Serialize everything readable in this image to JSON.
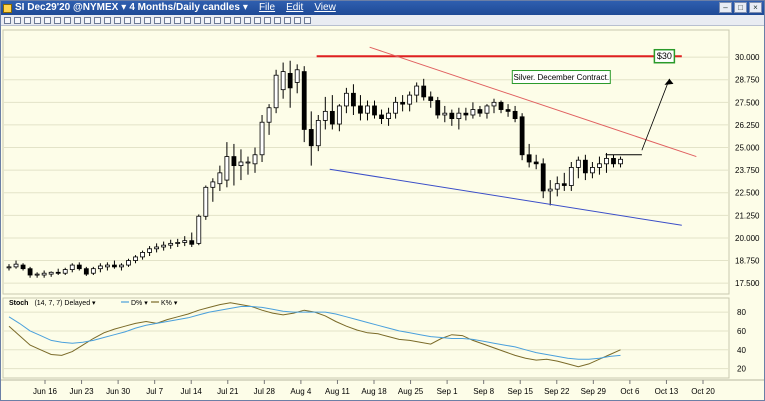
{
  "window": {
    "title": "SI Dec29'20 @NYMEX",
    "period": "4 Months/Daily candles",
    "menus": [
      "File",
      "Edit",
      "View"
    ],
    "controls": [
      "minimize-icon",
      "maximize-icon",
      "close-icon"
    ],
    "toolbar_icons": [
      "pointer-icon",
      "crosshair-icon",
      "line-tool-icon",
      "channel-tool-icon",
      "fib-tool-icon",
      "text-tool-icon",
      "ellipse-tool-icon",
      "rect-tool-icon",
      "arrow-tool-icon",
      "zoom-in-icon",
      "zoom-out-icon",
      "measure-icon",
      "erase-icon",
      "draw-icon",
      "color-icon",
      "palette-icon",
      "lock-icon",
      "grid-icon",
      "settings-icon",
      "gear-icon",
      "tag-icon",
      "star-icon",
      "flag-icon",
      "target-icon",
      "bell-icon",
      "link-icon",
      "copy-icon",
      "paste-icon",
      "save-icon",
      "print-icon",
      "help-icon"
    ]
  },
  "colors": {
    "background": "#fdfde8",
    "candle": "#000000",
    "resistance_line": "#e02020",
    "upper_trend": "#e06060",
    "lower_trend": "#3b4ec8",
    "k_line": "#7a6a28",
    "d_line": "#4aa0dc",
    "annotation_border": "#2a9a2a"
  },
  "chart_data": [
    {
      "type": "candlestick",
      "ylim": [
        16.9,
        31.5
      ],
      "y_ticks": [
        "30.000",
        "28.750",
        "27.500",
        "26.250",
        "25.000",
        "23.750",
        "22.500",
        "21.250",
        "20.000",
        "18.750",
        "17.500"
      ],
      "x_ticks": [
        "Jun 16",
        "Jun 23",
        "Jun 30",
        "Jul 7",
        "Jul 14",
        "Jul 21",
        "Jul 28",
        "Aug 4",
        "Aug 11",
        "Aug 18",
        "Aug 25",
        "Sep 1",
        "Sep 8",
        "Sep 15",
        "Sep 22",
        "Sep 29",
        "Oct 6",
        "Oct 13",
        "Oct 20"
      ],
      "candles": [
        {
          "o": 18.35,
          "h": 18.55,
          "l": 18.2,
          "c": 18.4
        },
        {
          "o": 18.4,
          "h": 18.75,
          "l": 18.3,
          "c": 18.55
        },
        {
          "o": 18.5,
          "h": 18.6,
          "l": 18.2,
          "c": 18.3
        },
        {
          "o": 18.3,
          "h": 18.4,
          "l": 17.8,
          "c": 17.95
        },
        {
          "o": 17.95,
          "h": 18.1,
          "l": 17.8,
          "c": 18.0
        },
        {
          "o": 17.95,
          "h": 18.2,
          "l": 17.8,
          "c": 18.05
        },
        {
          "o": 18.0,
          "h": 18.15,
          "l": 17.85,
          "c": 18.1
        },
        {
          "o": 18.1,
          "h": 18.3,
          "l": 17.95,
          "c": 18.05
        },
        {
          "o": 18.05,
          "h": 18.35,
          "l": 17.95,
          "c": 18.25
        },
        {
          "o": 18.25,
          "h": 18.6,
          "l": 18.1,
          "c": 18.5
        },
        {
          "o": 18.5,
          "h": 18.65,
          "l": 18.2,
          "c": 18.3
        },
        {
          "o": 18.3,
          "h": 18.4,
          "l": 17.9,
          "c": 18.0
        },
        {
          "o": 18.05,
          "h": 18.4,
          "l": 17.95,
          "c": 18.3
        },
        {
          "o": 18.3,
          "h": 18.6,
          "l": 18.1,
          "c": 18.45
        },
        {
          "o": 18.4,
          "h": 18.65,
          "l": 18.2,
          "c": 18.5
        },
        {
          "o": 18.5,
          "h": 18.75,
          "l": 18.3,
          "c": 18.4
        },
        {
          "o": 18.4,
          "h": 18.6,
          "l": 18.2,
          "c": 18.5
        },
        {
          "o": 18.5,
          "h": 18.85,
          "l": 18.4,
          "c": 18.75
        },
        {
          "o": 18.75,
          "h": 19.05,
          "l": 18.6,
          "c": 18.95
        },
        {
          "o": 18.95,
          "h": 19.3,
          "l": 18.8,
          "c": 19.2
        },
        {
          "o": 19.2,
          "h": 19.55,
          "l": 19.0,
          "c": 19.4
        },
        {
          "o": 19.4,
          "h": 19.7,
          "l": 19.2,
          "c": 19.5
        },
        {
          "o": 19.5,
          "h": 19.8,
          "l": 19.3,
          "c": 19.6
        },
        {
          "o": 19.6,
          "h": 19.9,
          "l": 19.4,
          "c": 19.7
        },
        {
          "o": 19.7,
          "h": 19.95,
          "l": 19.5,
          "c": 19.75
        },
        {
          "o": 19.75,
          "h": 20.1,
          "l": 19.55,
          "c": 19.85
        },
        {
          "o": 19.85,
          "h": 20.3,
          "l": 19.5,
          "c": 19.65
        },
        {
          "o": 19.7,
          "h": 21.3,
          "l": 19.6,
          "c": 21.2
        },
        {
          "o": 21.2,
          "h": 22.9,
          "l": 21.0,
          "c": 22.8
        },
        {
          "o": 22.8,
          "h": 23.3,
          "l": 22.0,
          "c": 23.1
        },
        {
          "o": 23.0,
          "h": 24.0,
          "l": 22.6,
          "c": 23.6
        },
        {
          "o": 23.2,
          "h": 25.3,
          "l": 22.8,
          "c": 24.5
        },
        {
          "o": 24.5,
          "h": 25.2,
          "l": 22.9,
          "c": 24.0
        },
        {
          "o": 24.0,
          "h": 24.9,
          "l": 23.2,
          "c": 24.2
        },
        {
          "o": 24.2,
          "h": 24.5,
          "l": 23.5,
          "c": 24.2
        },
        {
          "o": 24.1,
          "h": 25.0,
          "l": 23.6,
          "c": 24.6
        },
        {
          "o": 24.6,
          "h": 26.8,
          "l": 24.2,
          "c": 26.4
        },
        {
          "o": 26.4,
          "h": 27.4,
          "l": 25.7,
          "c": 27.2
        },
        {
          "o": 27.2,
          "h": 29.3,
          "l": 26.9,
          "c": 29.0
        },
        {
          "o": 28.2,
          "h": 29.7,
          "l": 27.7,
          "c": 29.2
        },
        {
          "o": 29.1,
          "h": 29.8,
          "l": 27.2,
          "c": 28.3
        },
        {
          "o": 28.6,
          "h": 29.6,
          "l": 28.0,
          "c": 29.3
        },
        {
          "o": 29.2,
          "h": 29.5,
          "l": 25.3,
          "c": 26.0
        },
        {
          "o": 26.0,
          "h": 27.0,
          "l": 24.0,
          "c": 25.1
        },
        {
          "o": 25.1,
          "h": 26.8,
          "l": 24.8,
          "c": 26.5
        },
        {
          "o": 26.5,
          "h": 27.8,
          "l": 26.0,
          "c": 27.0
        },
        {
          "o": 27.0,
          "h": 27.9,
          "l": 26.0,
          "c": 26.3
        },
        {
          "o": 26.3,
          "h": 27.4,
          "l": 25.9,
          "c": 27.3
        },
        {
          "o": 27.3,
          "h": 28.3,
          "l": 26.9,
          "c": 28.0
        },
        {
          "o": 28.0,
          "h": 28.5,
          "l": 26.8,
          "c": 27.3
        },
        {
          "o": 27.3,
          "h": 27.9,
          "l": 26.5,
          "c": 26.9
        },
        {
          "o": 26.9,
          "h": 27.6,
          "l": 26.5,
          "c": 27.3
        },
        {
          "o": 27.3,
          "h": 27.6,
          "l": 26.6,
          "c": 26.8
        },
        {
          "o": 26.8,
          "h": 27.1,
          "l": 26.3,
          "c": 26.6
        },
        {
          "o": 26.6,
          "h": 27.2,
          "l": 26.2,
          "c": 26.9
        },
        {
          "o": 26.9,
          "h": 27.8,
          "l": 26.6,
          "c": 27.5
        },
        {
          "o": 27.5,
          "h": 27.9,
          "l": 27.0,
          "c": 27.4
        },
        {
          "o": 27.4,
          "h": 28.1,
          "l": 27.0,
          "c": 27.9
        },
        {
          "o": 27.9,
          "h": 28.6,
          "l": 27.5,
          "c": 28.4
        },
        {
          "o": 28.4,
          "h": 28.8,
          "l": 27.6,
          "c": 27.8
        },
        {
          "o": 27.8,
          "h": 28.1,
          "l": 27.2,
          "c": 27.6
        },
        {
          "o": 27.6,
          "h": 27.8,
          "l": 26.6,
          "c": 26.8
        },
        {
          "o": 26.8,
          "h": 27.3,
          "l": 26.4,
          "c": 26.9
        },
        {
          "o": 26.9,
          "h": 27.1,
          "l": 26.2,
          "c": 26.6
        },
        {
          "o": 26.6,
          "h": 27.2,
          "l": 26.0,
          "c": 26.9
        },
        {
          "o": 26.9,
          "h": 27.2,
          "l": 26.5,
          "c": 26.8
        },
        {
          "o": 26.8,
          "h": 27.5,
          "l": 26.6,
          "c": 27.1
        },
        {
          "o": 27.1,
          "h": 27.3,
          "l": 26.7,
          "c": 26.9
        },
        {
          "o": 26.9,
          "h": 27.4,
          "l": 26.6,
          "c": 27.3
        },
        {
          "o": 27.3,
          "h": 27.7,
          "l": 26.9,
          "c": 27.5
        },
        {
          "o": 27.5,
          "h": 27.6,
          "l": 26.9,
          "c": 27.1
        },
        {
          "o": 27.1,
          "h": 27.4,
          "l": 26.7,
          "c": 27.0
        },
        {
          "o": 27.0,
          "h": 27.3,
          "l": 26.4,
          "c": 26.6
        },
        {
          "o": 26.7,
          "h": 26.9,
          "l": 24.3,
          "c": 24.6
        },
        {
          "o": 24.6,
          "h": 25.2,
          "l": 23.9,
          "c": 24.2
        },
        {
          "o": 24.2,
          "h": 24.6,
          "l": 23.8,
          "c": 24.1
        },
        {
          "o": 24.1,
          "h": 24.4,
          "l": 22.2,
          "c": 22.6
        },
        {
          "o": 22.6,
          "h": 23.2,
          "l": 21.8,
          "c": 22.7
        },
        {
          "o": 22.7,
          "h": 23.4,
          "l": 22.3,
          "c": 23.0
        },
        {
          "o": 23.0,
          "h": 23.6,
          "l": 22.6,
          "c": 22.9
        },
        {
          "o": 22.9,
          "h": 24.2,
          "l": 22.6,
          "c": 23.9
        },
        {
          "o": 23.9,
          "h": 24.5,
          "l": 23.3,
          "c": 24.3
        },
        {
          "o": 24.3,
          "h": 24.6,
          "l": 23.2,
          "c": 23.6
        },
        {
          "o": 23.6,
          "h": 24.2,
          "l": 23.3,
          "c": 23.9
        },
        {
          "o": 23.9,
          "h": 24.5,
          "l": 23.5,
          "c": 24.1
        },
        {
          "o": 24.1,
          "h": 24.7,
          "l": 23.6,
          "c": 24.4
        },
        {
          "o": 24.4,
          "h": 24.6,
          "l": 23.9,
          "c": 24.1
        },
        {
          "o": 24.1,
          "h": 24.5,
          "l": 23.9,
          "c": 24.35
        }
      ],
      "lines": [
        {
          "name": "resistance",
          "x": [
            0.432,
            0.935
          ],
          "y": [
            30.05,
            30.05
          ]
        },
        {
          "name": "upper-trend",
          "x": [
            0.505,
            0.955
          ],
          "y": [
            30.55,
            24.5
          ]
        },
        {
          "name": "lower-trend",
          "x": [
            0.45,
            0.935
          ],
          "y": [
            23.8,
            20.7
          ]
        },
        {
          "name": "breakout",
          "x": [
            0.83,
            0.88
          ],
          "y": [
            24.6,
            24.6
          ]
        },
        {
          "name": "projection-arrow",
          "x": [
            0.88,
            0.918
          ],
          "y": [
            24.85,
            28.8
          ]
        }
      ],
      "annotations": [
        {
          "text": "$30",
          "x": 0.911,
          "y": 30.05
        },
        {
          "text": "Silver. December Contract.",
          "x": 0.769,
          "y": 28.9
        }
      ]
    },
    {
      "type": "line",
      "title": "Stoch",
      "params": "(14, 7, 7) Delayed",
      "legend": [
        "D%",
        "K%"
      ],
      "ylim": [
        10,
        95
      ],
      "y_ticks": [
        "80",
        "60",
        "40",
        "20"
      ],
      "series": [
        {
          "name": "K%",
          "values": [
            65,
            55,
            45,
            40,
            35,
            34,
            38,
            45,
            52,
            58,
            62,
            65,
            68,
            70,
            68,
            72,
            75,
            78,
            82,
            85,
            88,
            90,
            88,
            86,
            82,
            79,
            77,
            79,
            82,
            80,
            76,
            70,
            65,
            61,
            58,
            57,
            54,
            51,
            50,
            48,
            46,
            52,
            56,
            55,
            50,
            46,
            42,
            38,
            34,
            31,
            29,
            30,
            28,
            25,
            22,
            25,
            30,
            35,
            40
          ]
        },
        {
          "name": "D%",
          "values": [
            75,
            68,
            60,
            55,
            50,
            48,
            47,
            48,
            50,
            53,
            56,
            59,
            63,
            66,
            68,
            70,
            72,
            74,
            77,
            80,
            82,
            84,
            86,
            86,
            85,
            83,
            81,
            80,
            80,
            80,
            80,
            78,
            75,
            72,
            69,
            66,
            63,
            60,
            58,
            56,
            54,
            53,
            52,
            52,
            51,
            49,
            47,
            45,
            43,
            40,
            37,
            35,
            33,
            31,
            30,
            30,
            31,
            33,
            34
          ]
        }
      ]
    }
  ]
}
